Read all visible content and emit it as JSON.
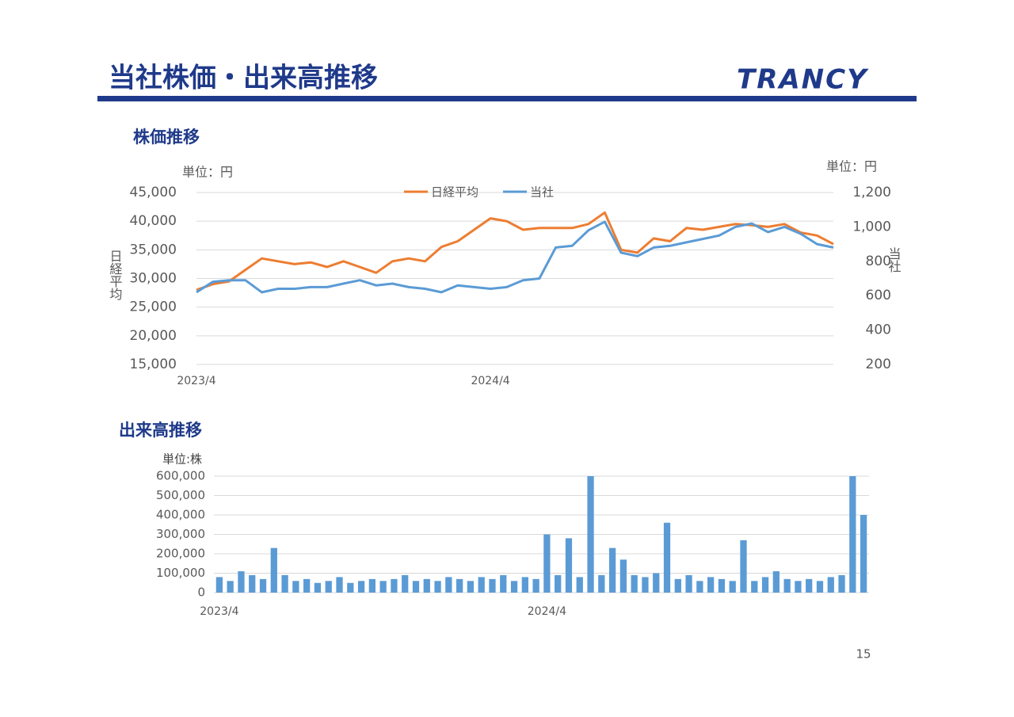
{
  "header": {
    "title": "当社株価・出来高推移",
    "logo": "TRANCY",
    "page_number": "15"
  },
  "chart_data": [
    {
      "type": "line",
      "title": "株価推移",
      "unit_left": "単位：円",
      "unit_right": "単位：円",
      "y_label": "日経平均",
      "y2_label": "当社",
      "categories": [
        "2023/4",
        null,
        null,
        null,
        null,
        null,
        null,
        null,
        null,
        null,
        null,
        null,
        null,
        null,
        null,
        null,
        null,
        null,
        "2024/4",
        null,
        null,
        null,
        null,
        null,
        null,
        null,
        null,
        null,
        null,
        null,
        null,
        null,
        null,
        null,
        null,
        null,
        null,
        null,
        null,
        null
      ],
      "series": [
        {
          "name": "日経平均",
          "color": "#ed7d31",
          "values": [
            28000,
            29000,
            29500,
            31500,
            33500,
            33000,
            32500,
            32800,
            32000,
            33000,
            32000,
            31000,
            33000,
            33500,
            33000,
            35500,
            36500,
            38500,
            40500,
            40000,
            38500,
            38800,
            38800,
            38800,
            39500,
            41500,
            35000,
            34500,
            37000,
            36500,
            38800,
            38500,
            39000,
            39500,
            39300,
            39000,
            39500,
            38000,
            37500,
            36000
          ]
        },
        {
          "name": "当社",
          "color": "#5b9bd5",
          "axis": "y2",
          "values": [
            620,
            680,
            690,
            690,
            620,
            640,
            640,
            650,
            650,
            670,
            690,
            660,
            670,
            650,
            640,
            620,
            660,
            650,
            640,
            650,
            690,
            700,
            880,
            890,
            980,
            1030,
            850,
            830,
            880,
            890,
            910,
            930,
            950,
            1000,
            1020,
            970,
            1000,
            960,
            900,
            880
          ]
        }
      ],
      "ylim": [
        15000,
        45000
      ],
      "yticks": [
        {
          "value": 15000,
          "label": "15,000"
        },
        {
          "value": 20000,
          "label": "20,000"
        },
        {
          "value": 25000,
          "label": "25,000"
        },
        {
          "value": 30000,
          "label": "30,000"
        },
        {
          "value": 35000,
          "label": "35,000"
        },
        {
          "value": 40000,
          "label": "40,000"
        },
        {
          "value": 45000,
          "label": "45,000"
        }
      ],
      "y2lim": [
        200,
        1200
      ],
      "y2ticks": [
        200,
        400,
        600,
        800,
        {
          "value": 1000,
          "label": "1,000"
        },
        {
          "value": 1200,
          "label": "1,200"
        }
      ],
      "grid": true,
      "legend": "top"
    },
    {
      "type": "bar",
      "title": "出来高推移",
      "unit_left": "単位:株",
      "color": "#5b9bd5",
      "categories": [
        "2023/4",
        null,
        null,
        null,
        null,
        null,
        null,
        null,
        null,
        null,
        null,
        null,
        null,
        null,
        null,
        null,
        null,
        null,
        null,
        null,
        null,
        null,
        null,
        null,
        null,
        null,
        null,
        null,
        null,
        null,
        "2024/4",
        null,
        null,
        null,
        null,
        null,
        null,
        null,
        null,
        null,
        null,
        null,
        null,
        null,
        null,
        null,
        null,
        null,
        null,
        null,
        null,
        null,
        null,
        null,
        null,
        null,
        null,
        null,
        null,
        null
      ],
      "values": [
        80000,
        60000,
        110000,
        90000,
        70000,
        230000,
        90000,
        60000,
        70000,
        50000,
        60000,
        80000,
        50000,
        60000,
        70000,
        60000,
        70000,
        90000,
        60000,
        70000,
        60000,
        80000,
        70000,
        60000,
        80000,
        70000,
        90000,
        60000,
        80000,
        70000,
        300000,
        90000,
        280000,
        80000,
        600000,
        90000,
        230000,
        170000,
        90000,
        80000,
        100000,
        360000,
        70000,
        90000,
        60000,
        80000,
        70000,
        60000,
        270000,
        60000,
        80000,
        110000,
        70000,
        60000,
        70000,
        60000,
        80000,
        90000,
        600000,
        400000
      ],
      "ylim": [
        0,
        600000
      ],
      "yticks": [
        0,
        {
          "value": 100000,
          "label": "100,000"
        },
        {
          "value": 200000,
          "label": "200,000"
        },
        {
          "value": 300000,
          "label": "300,000"
        },
        {
          "value": 400000,
          "label": "400,000"
        },
        {
          "value": 500000,
          "label": "500,000"
        },
        {
          "value": 600000,
          "label": "600,000"
        }
      ],
      "grid": true
    }
  ]
}
